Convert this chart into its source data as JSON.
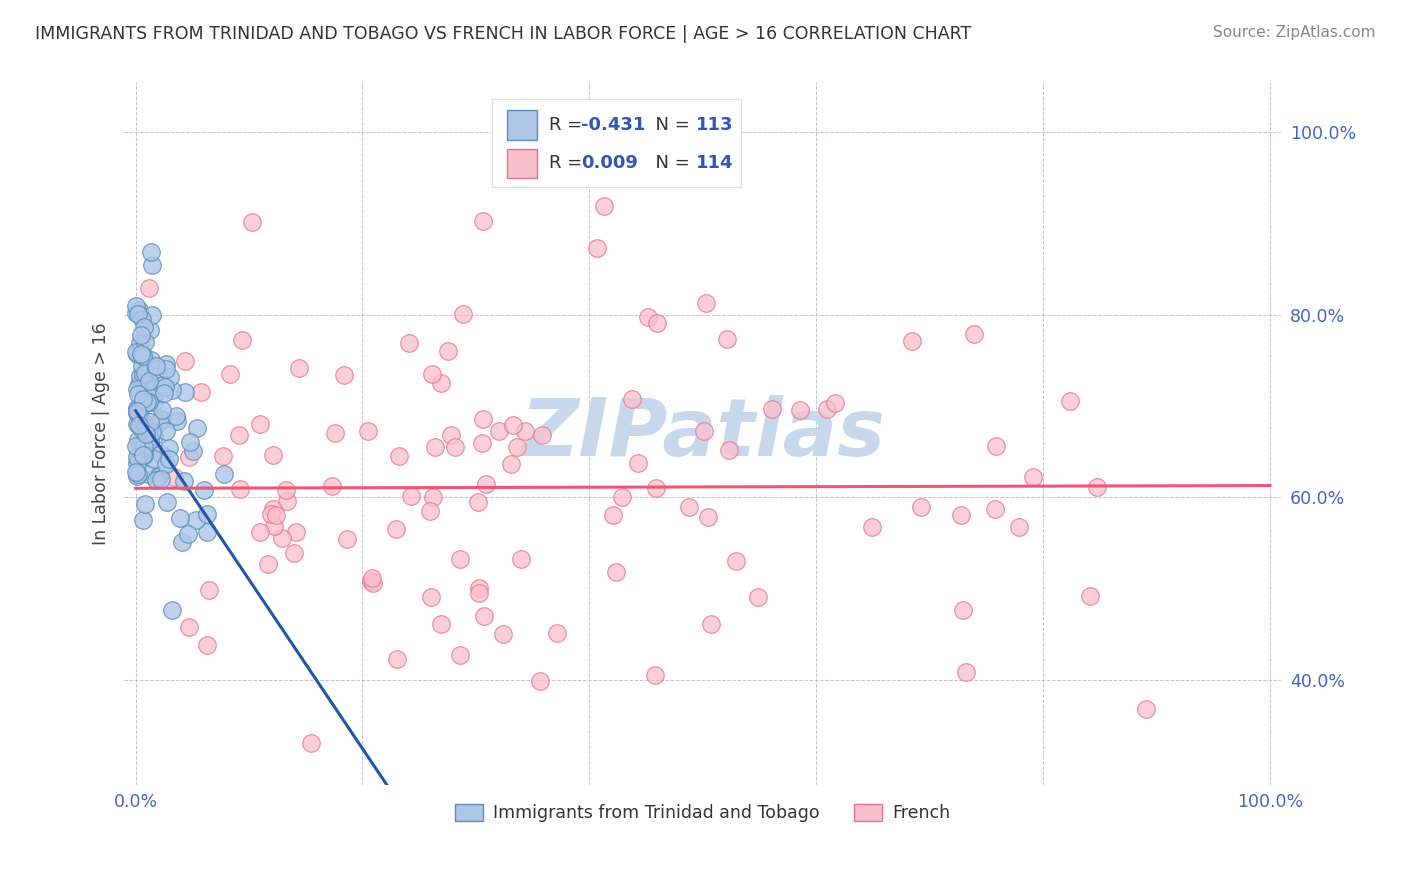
{
  "title": "IMMIGRANTS FROM TRINIDAD AND TOBAGO VS FRENCH IN LABOR FORCE | AGE > 16 CORRELATION CHART",
  "source": "Source: ZipAtlas.com",
  "ylabel": "In Labor Force | Age > 16",
  "ytick_labels": [
    "40.0%",
    "60.0%",
    "80.0%",
    "100.0%"
  ],
  "ytick_values": [
    0.4,
    0.6,
    0.8,
    1.0
  ],
  "legend_1_label": "Immigrants from Trinidad and Tobago",
  "legend_2_label": "French",
  "R1": -0.431,
  "N1": 113,
  "R2": 0.009,
  "N2": 114,
  "blue_color": "#AEC6E8",
  "blue_edge_color": "#5B8DB8",
  "pink_color": "#F9C0CB",
  "pink_edge_color": "#E87090",
  "blue_line_color": "#2255AA",
  "pink_line_color": "#EE5577",
  "bg_color": "#FFFFFF",
  "grid_color": "#BBBBCC",
  "title_color": "#333333",
  "source_color": "#888888",
  "watermark_color": "#C8D8EC",
  "axis_tick_color": "#4466BB",
  "ylabel_color": "#444444",
  "legend_text_color": "#333333",
  "legend_value_color": "#3355BB",
  "seed1": 42,
  "seed2": 77
}
